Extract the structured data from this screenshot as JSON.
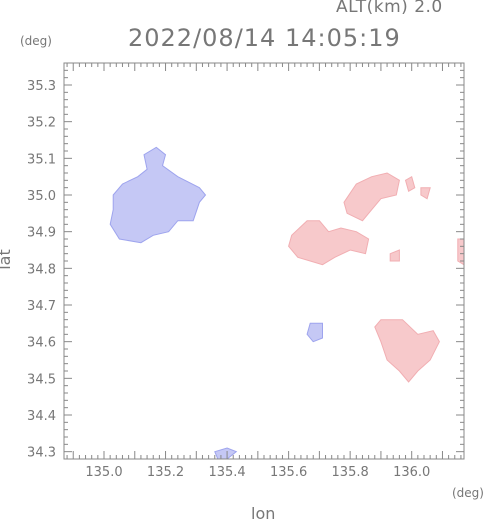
{
  "header": {
    "altitude": "ALT(km)  2.0",
    "timestamp": "2022/08/14  14:05:19"
  },
  "chart_data": {
    "type": "heatmap",
    "xlabel": "lon",
    "ylabel": "lat",
    "x_unit": "(deg)",
    "y_unit": "(deg)",
    "xlim": [
      134.87,
      136.17
    ],
    "ylim": [
      34.28,
      35.36
    ],
    "x_ticks": [
      135.0,
      135.2,
      135.4,
      135.6,
      135.8,
      136.0
    ],
    "x_tick_labels": [
      "135.0",
      "135.2",
      "135.4",
      "135.6",
      "135.8",
      "136.0"
    ],
    "y_ticks": [
      34.3,
      34.4,
      34.5,
      34.6,
      34.7,
      34.8,
      34.9,
      35.0,
      35.1,
      35.2,
      35.3
    ],
    "y_tick_labels": [
      "34.3",
      "34.4",
      "34.5",
      "34.6",
      "34.7",
      "34.8",
      "34.9",
      "35.0",
      "35.1",
      "35.2",
      "35.3"
    ],
    "colors": {
      "negative": "#c5c8f5",
      "negative_dark": "#9ea4ee",
      "positive": "#f7c9cb",
      "positive_dark": "#f1aeb2",
      "axis": "#888888"
    },
    "regions": [
      {
        "sign": "negative",
        "outline": [
          [
            135.03,
            35.0
          ],
          [
            135.06,
            35.03
          ],
          [
            135.11,
            35.05
          ],
          [
            135.14,
            35.07
          ],
          [
            135.13,
            35.11
          ],
          [
            135.17,
            35.13
          ],
          [
            135.2,
            35.11
          ],
          [
            135.19,
            35.08
          ],
          [
            135.24,
            35.05
          ],
          [
            135.31,
            35.02
          ],
          [
            135.33,
            35.0
          ],
          [
            135.31,
            34.98
          ],
          [
            135.29,
            34.93
          ],
          [
            135.24,
            34.93
          ],
          [
            135.21,
            34.9
          ],
          [
            135.16,
            34.89
          ],
          [
            135.12,
            34.87
          ],
          [
            135.05,
            34.88
          ],
          [
            135.02,
            34.92
          ],
          [
            135.03,
            34.96
          ]
        ]
      },
      {
        "sign": "positive",
        "outline": [
          [
            135.66,
            34.93
          ],
          [
            135.7,
            34.93
          ],
          [
            135.73,
            34.9
          ],
          [
            135.77,
            34.91
          ],
          [
            135.82,
            34.9
          ],
          [
            135.86,
            34.88
          ],
          [
            135.85,
            34.84
          ],
          [
            135.8,
            34.85
          ],
          [
            135.75,
            34.83
          ],
          [
            135.71,
            34.81
          ],
          [
            135.67,
            34.82
          ],
          [
            135.63,
            34.83
          ],
          [
            135.6,
            34.86
          ],
          [
            135.61,
            34.89
          ]
        ]
      },
      {
        "sign": "positive",
        "outline": [
          [
            135.78,
            34.98
          ],
          [
            135.82,
            35.03
          ],
          [
            135.87,
            35.05
          ],
          [
            135.92,
            35.06
          ],
          [
            135.96,
            35.04
          ],
          [
            135.95,
            35.0
          ],
          [
            135.9,
            34.99
          ],
          [
            135.87,
            34.96
          ],
          [
            135.84,
            34.93
          ],
          [
            135.79,
            34.95
          ]
        ]
      },
      {
        "sign": "positive",
        "outline": [
          [
            135.9,
            34.66
          ],
          [
            135.97,
            34.66
          ],
          [
            136.02,
            34.62
          ],
          [
            136.07,
            34.63
          ],
          [
            136.09,
            34.6
          ],
          [
            136.06,
            34.55
          ],
          [
            136.02,
            34.52
          ],
          [
            135.99,
            34.49
          ],
          [
            135.96,
            34.52
          ],
          [
            135.92,
            34.55
          ],
          [
            135.9,
            34.6
          ],
          [
            135.88,
            34.64
          ]
        ]
      },
      {
        "sign": "positive",
        "outline": [
          [
            135.98,
            35.04
          ],
          [
            136.0,
            35.05
          ],
          [
            136.01,
            35.02
          ],
          [
            135.99,
            35.01
          ]
        ]
      },
      {
        "sign": "positive",
        "outline": [
          [
            136.03,
            35.02
          ],
          [
            136.06,
            35.02
          ],
          [
            136.05,
            34.99
          ],
          [
            136.03,
            35.0
          ]
        ]
      },
      {
        "sign": "positive",
        "outline": [
          [
            136.15,
            34.88
          ],
          [
            136.17,
            34.88
          ],
          [
            136.17,
            34.81
          ],
          [
            136.15,
            34.82
          ]
        ]
      },
      {
        "sign": "positive",
        "outline": [
          [
            135.93,
            34.84
          ],
          [
            135.96,
            34.85
          ],
          [
            135.96,
            34.82
          ],
          [
            135.93,
            34.82
          ]
        ]
      },
      {
        "sign": "negative",
        "outline": [
          [
            135.36,
            34.3
          ],
          [
            135.4,
            34.31
          ],
          [
            135.43,
            34.3
          ],
          [
            135.4,
            34.28
          ],
          [
            135.37,
            34.28
          ]
        ]
      },
      {
        "sign": "negative",
        "outline": [
          [
            135.67,
            34.65
          ],
          [
            135.71,
            34.65
          ],
          [
            135.71,
            34.61
          ],
          [
            135.68,
            34.6
          ],
          [
            135.66,
            34.62
          ]
        ]
      }
    ]
  }
}
